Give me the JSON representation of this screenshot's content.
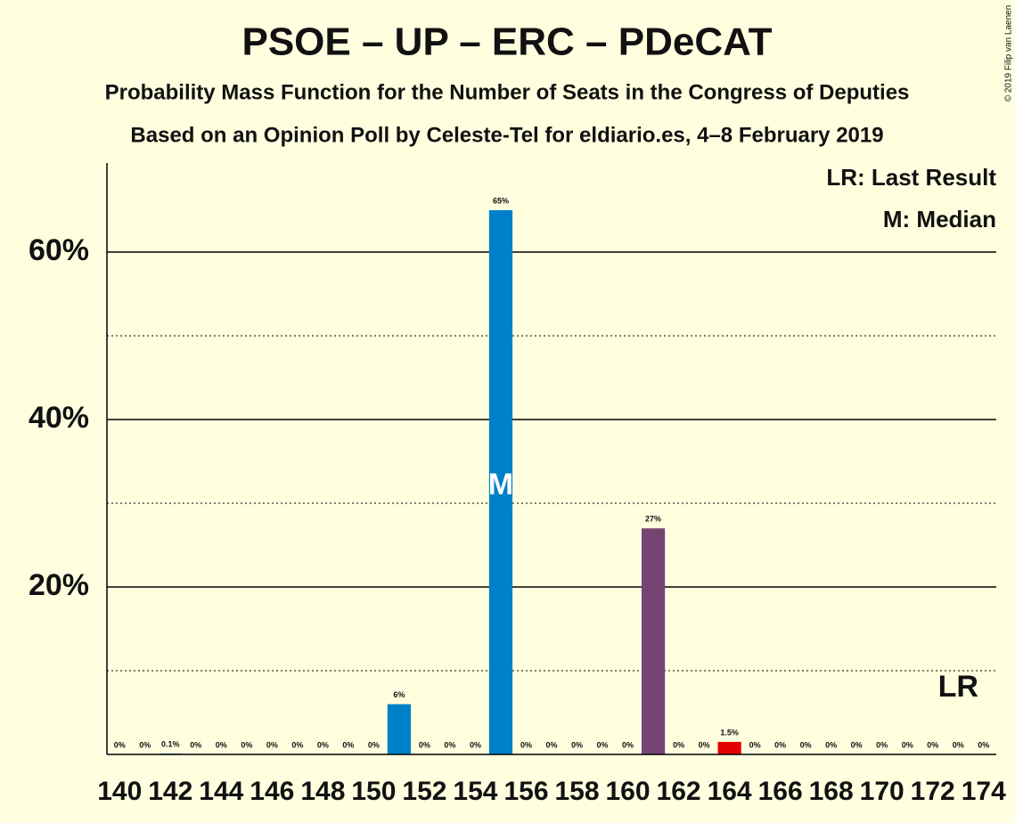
{
  "chart_data": {
    "type": "bar",
    "title": "PSOE – UP – ERC – PDeCAT",
    "subtitle": "Probability Mass Function for the Number of Seats in the Congress of Deputies",
    "subtitle2": "Based on an Opinion Poll by Celeste-Tel for eldiario.es, 4–8 February 2019",
    "copyright": "© 2019 Filip van Laenen",
    "legend": [
      "LR: Last Result",
      "M: Median"
    ],
    "median_label": "M",
    "last_result_label": "LR",
    "median_index": 15,
    "last_result_index": 33,
    "categories": [
      "140",
      null,
      "142",
      null,
      "144",
      null,
      "146",
      null,
      "148",
      null,
      "150",
      null,
      "152",
      null,
      "154",
      null,
      "156",
      null,
      "158",
      null,
      "160",
      null,
      "162",
      null,
      "164",
      null,
      "166",
      null,
      "168",
      null,
      "170",
      null,
      "172",
      null,
      "174"
    ],
    "values": [
      0,
      0,
      0.1,
      0,
      0,
      0,
      0,
      0,
      0,
      0,
      0,
      6,
      0,
      0,
      0,
      65,
      0,
      0,
      0,
      0,
      0,
      27,
      0,
      0,
      1.5,
      0,
      0,
      0,
      0,
      0,
      0,
      0,
      0,
      0,
      0
    ],
    "value_labels": [
      "0%",
      "0%",
      "0.1%",
      "0%",
      "0%",
      "0%",
      "0%",
      "0%",
      "0%",
      "0%",
      "0%",
      "6%",
      "0%",
      "0%",
      "0%",
      "65%",
      "0%",
      "0%",
      "0%",
      "0%",
      "0%",
      "27%",
      "0%",
      "0%",
      "1.5%",
      "0%",
      "0%",
      "0%",
      "0%",
      "0%",
      "0%",
      "0%",
      "0%",
      "0%",
      "0%"
    ],
    "colors": [
      "#0080C8",
      "#0080C8",
      "#0080C8",
      "#0080C8",
      "#0080C8",
      "#0080C8",
      "#0080C8",
      "#0080C8",
      "#0080C8",
      "#0080C8",
      "#0080C8",
      "#0080C8",
      "#0080C8",
      "#0080C8",
      "#0080C8",
      "#0080C8",
      "#744573",
      "#744573",
      "#744573",
      "#744573",
      "#744573",
      "#744573",
      "#744573",
      "#744573",
      "#E30000",
      "#E30000",
      "#E30000",
      "#E30000",
      "#E30000",
      "#E30000",
      "#E30000",
      "#E30000",
      "#E30000",
      "#E30000",
      "#E30000"
    ],
    "ylim": [
      0,
      70
    ],
    "yticks": [
      {
        "value": 20,
        "label": "20%"
      },
      {
        "value": 40,
        "label": "40%"
      },
      {
        "value": 60,
        "label": "60%"
      }
    ],
    "minor_grid": [
      10,
      30,
      50
    ],
    "grid": true
  }
}
